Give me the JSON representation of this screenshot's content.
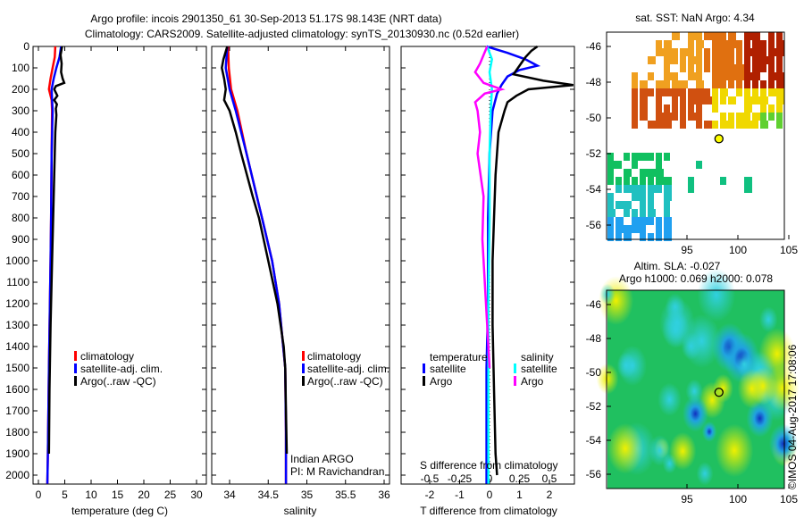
{
  "title_line1": "Argo profile: incois 2901350_61 30-Sep-2013 51.17S 98.143E (NRT data)",
  "title_line2": "Climatology: CARS2009. Satellite-adjusted climatology: synTS_20130930.nc (0.52d earlier)",
  "colors": {
    "climatology": "#ff0000",
    "satellite": "#0000ff",
    "argo": "#000000",
    "sal_satellite": "#00ffff",
    "sal_argo": "#ff00ff"
  },
  "chart_data": [
    {
      "type": "line",
      "title": "",
      "xlabel": "temperature (deg C)",
      "ylabel": "",
      "xlim": [
        -2,
        32
      ],
      "ylim": [
        2050,
        0
      ],
      "xticks": [
        "0",
        "5",
        "10",
        "15",
        "20",
        "25",
        "30"
      ],
      "yticks": [
        "0",
        "100",
        "200",
        "300",
        "400",
        "500",
        "600",
        "700",
        "800",
        "900",
        "1000",
        "1100",
        "1200",
        "1300",
        "1400",
        "1500",
        "1600",
        "1700",
        "1800",
        "1900",
        "2000"
      ],
      "legend": [
        "climatology",
        "satellite-adj. clim.",
        "Argo(..raw -QC)"
      ],
      "series": [
        {
          "name": "climatology",
          "depth": [
            0,
            50,
            100,
            150,
            200,
            250,
            300,
            500,
            800,
            1000,
            1500,
            1900,
            2040
          ],
          "values": [
            3.2,
            3.1,
            2.7,
            2.3,
            2.0,
            2.5,
            2.6,
            2.5,
            2.4,
            2.3,
            2.0,
            1.8,
            1.7
          ]
        },
        {
          "name": "satellite-adj. clim.",
          "depth": [
            0,
            50,
            100,
            150,
            200,
            250,
            300,
            500,
            800,
            1000,
            1500,
            1900,
            2040
          ],
          "values": [
            4.3,
            4.0,
            3.4,
            2.9,
            2.5,
            2.6,
            2.7,
            2.5,
            2.4,
            2.3,
            2.0,
            1.8,
            1.7
          ]
        },
        {
          "name": "Argo(..raw -QC)",
          "depth": [
            0,
            40,
            80,
            120,
            150,
            170,
            185,
            200,
            230,
            250,
            270,
            290,
            320,
            400,
            600,
            800,
            1000,
            1300,
            1600,
            1900
          ],
          "values": [
            4.5,
            4.2,
            4.4,
            4.3,
            4.6,
            4.9,
            3.3,
            3.0,
            3.6,
            3.0,
            3.5,
            3.3,
            3.4,
            3.2,
            3.0,
            2.8,
            2.6,
            2.3,
            2.1,
            2.0
          ]
        }
      ]
    },
    {
      "type": "line",
      "title": "",
      "xlabel": "salinity",
      "ylabel": "",
      "xlim": [
        33.8,
        36.1
      ],
      "ylim": [
        2050,
        0
      ],
      "xticks": [
        "34",
        "34.5",
        "35",
        "35.5",
        "36"
      ],
      "legend": [
        "climatology",
        "satellite-adj. clim.",
        "Argo(..raw -QC)"
      ],
      "annotation": [
        "Indian ARGO",
        "PI: M Ravichandran"
      ],
      "series": [
        {
          "name": "climatology",
          "depth": [
            0,
            100,
            200,
            300,
            500,
            800,
            1000,
            1200,
            1500,
            1800,
            2040
          ],
          "values": [
            33.98,
            33.99,
            34.02,
            34.1,
            34.22,
            34.42,
            34.55,
            34.64,
            34.72,
            34.73,
            34.73
          ]
        },
        {
          "name": "satellite-adj. clim.",
          "depth": [
            0,
            100,
            200,
            300,
            500,
            800,
            1000,
            1200,
            1500,
            1800,
            2040
          ],
          "values": [
            33.97,
            33.95,
            34.0,
            34.08,
            34.22,
            34.42,
            34.55,
            34.64,
            34.72,
            34.73,
            34.73
          ]
        },
        {
          "name": "Argo(..raw -QC)",
          "depth": [
            0,
            60,
            100,
            150,
            200,
            250,
            300,
            400,
            500,
            700,
            800,
            1000,
            1200,
            1400,
            1500,
            1700,
            1900
          ],
          "values": [
            33.97,
            33.92,
            33.9,
            33.93,
            33.95,
            33.93,
            34.0,
            34.08,
            34.15,
            34.3,
            34.38,
            34.5,
            34.62,
            34.7,
            34.72,
            34.73,
            34.74
          ]
        }
      ]
    },
    {
      "type": "line",
      "title": "",
      "xlabel": "T difference from climatology",
      "xlabel2": "S difference from climatology",
      "xlim_T": [
        -3,
        3
      ],
      "xticks_T": [
        "-2",
        "-1",
        "0",
        "1",
        "2"
      ],
      "xlim_S": [
        -0.75,
        0.75
      ],
      "xticks_S": [
        "-0.5",
        "-0.25",
        "0",
        "0.25",
        "0.5"
      ],
      "ylim": [
        2050,
        0
      ],
      "legend_headers": [
        "temperature",
        "salinity"
      ],
      "legend": [
        "satellite",
        "Argo",
        "satellite",
        "Argo"
      ],
      "series": [
        {
          "name": "temperature satellite",
          "axis": "T",
          "depth": [
            0,
            30,
            60,
            90,
            110,
            140,
            180,
            220,
            300,
            500,
            800,
            1200,
            1500,
            2040
          ],
          "values": [
            -0.1,
            0.6,
            1.2,
            1.6,
            1.0,
            0.6,
            0.4,
            0.25,
            0.1,
            0.0,
            -0.05,
            -0.05,
            -0.1,
            -0.1
          ]
        },
        {
          "name": "temperature Argo",
          "axis": "T",
          "depth": [
            0,
            20,
            50,
            90,
            130,
            160,
            180,
            200,
            230,
            260,
            300,
            400,
            600,
            800,
            1000,
            1300,
            1600,
            1900,
            2000
          ],
          "values": [
            1.6,
            1.4,
            1.2,
            1.0,
            0.8,
            1.8,
            2.8,
            1.3,
            0.9,
            0.6,
            0.5,
            0.3,
            0.2,
            0.15,
            0.1,
            0.1,
            0.15,
            0.2,
            0.25
          ]
        },
        {
          "name": "salinity satellite",
          "axis": "S",
          "depth": [
            0,
            60,
            120,
            200,
            300,
            500,
            800,
            1200,
            1600,
            2040
          ],
          "values": [
            -0.02,
            0.02,
            0.0,
            0.02,
            0.01,
            0.0,
            0.0,
            -0.01,
            -0.01,
            -0.01
          ]
        },
        {
          "name": "salinity Argo",
          "axis": "S",
          "depth": [
            0,
            80,
            120,
            170,
            200,
            220,
            260,
            300,
            400,
            500,
            700,
            900,
            1200,
            1500
          ],
          "values": [
            -0.02,
            -0.08,
            -0.12,
            -0.05,
            0.1,
            -0.04,
            -0.12,
            -0.1,
            -0.08,
            -0.1,
            -0.05,
            -0.06,
            -0.03,
            0.0
          ]
        }
      ]
    }
  ],
  "sst_map": {
    "title": "sat. SST: NaN Argo: 4.34",
    "lon_ticks": [
      "95",
      "100",
      "105"
    ],
    "lat_ticks": [
      "-46",
      "-48",
      "-50",
      "-52",
      "-54",
      "-56"
    ],
    "argo_lon": 98.14,
    "argo_lat": -51.17
  },
  "sla_map": {
    "title1": "Altim. SLA: -0.027",
    "title2": "Argo h1000: 0.069 h2000: 0.078",
    "lon_ticks": [
      "95",
      "100",
      "105"
    ],
    "lat_ticks": [
      "-46",
      "-48",
      "-50",
      "-52",
      "-54",
      "-56"
    ],
    "argo_lon": 98.14,
    "argo_lat": -51.17
  },
  "credit": "©IMOS 04-Aug-2017 17:08:06"
}
